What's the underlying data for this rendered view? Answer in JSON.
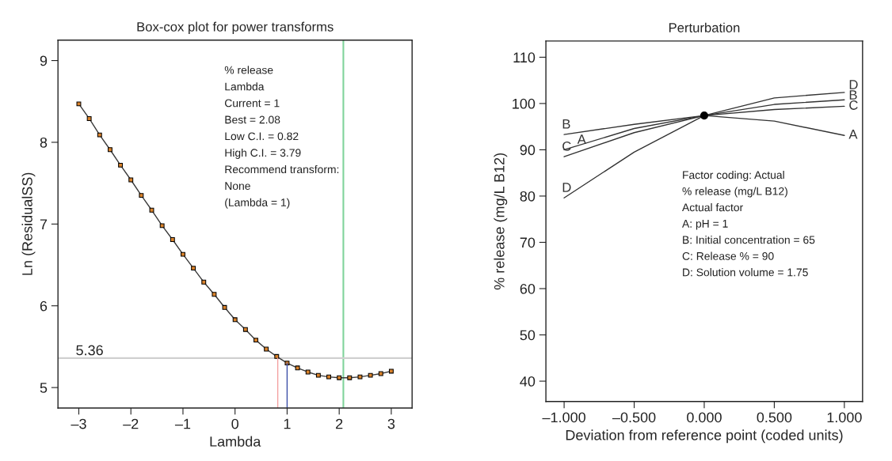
{
  "chart_data": [
    {
      "type": "line",
      "title": "Box-cox plot for power transforms",
      "xlabel": "Lambda",
      "ylabel": "Ln (ResidualSS)",
      "xlim": [
        -3.4,
        3.4
      ],
      "ylim": [
        4.75,
        9.25
      ],
      "xticks": [
        {
          "value": -3,
          "label": "–3"
        },
        {
          "value": -2,
          "label": "–2"
        },
        {
          "value": -1,
          "label": "–1"
        },
        0,
        1,
        2,
        3
      ],
      "yticks": [
        5,
        6,
        7,
        8,
        9
      ],
      "grid": false,
      "legend": false,
      "series": [
        {
          "color": "#3a3a3a",
          "marker": "square",
          "x": [
            -3,
            -2.8,
            -2.6,
            -2.4,
            -2.2,
            -2.0,
            -1.8,
            -1.6,
            -1.4,
            -1.2,
            -1.0,
            -0.8,
            -0.6,
            -0.4,
            -0.2,
            0,
            0.2,
            0.4,
            0.6,
            0.8,
            1.0,
            1.2,
            1.4,
            1.6,
            1.8,
            2.0,
            2.2,
            2.4,
            2.6,
            2.8,
            3.0
          ],
          "values": [
            8.47,
            8.29,
            8.09,
            7.91,
            7.72,
            7.54,
            7.35,
            7.17,
            6.98,
            6.81,
            6.63,
            6.46,
            6.29,
            6.14,
            5.98,
            5.83,
            5.71,
            5.58,
            5.47,
            5.38,
            5.3,
            5.24,
            5.19,
            5.15,
            5.13,
            5.12,
            5.12,
            5.13,
            5.15,
            5.17,
            5.2
          ]
        },
        {
          "color": "#f4a0a0",
          "x": [
            0.82,
            0.82
          ],
          "values": [
            4.75,
            5.36
          ]
        },
        {
          "color": "#3b4fa8",
          "x": [
            1,
            1
          ],
          "values": [
            4.75,
            5.3
          ]
        }
      ],
      "ref_lines": [
        {
          "axis": "x",
          "value": 2.08,
          "color": "#7fd39a"
        },
        {
          "axis": "y",
          "value": 5.36,
          "label": "5.36",
          "color": "#d0d0d0"
        }
      ],
      "annotations": [
        "% release",
        "Lambda",
        "Current = 1",
        "Best = 2.08",
        "Low C.I. = 0.82",
        "High C.I. = 3.79",
        "Recommend transform:",
        "None",
        "(Lambda = 1)"
      ]
    },
    {
      "type": "line",
      "title": "Perturbation",
      "xlabel": "Deviation from reference point (coded units)",
      "ylabel": "% release (mg/L B12)",
      "xlim": [
        -1.13,
        1.13
      ],
      "ylim": [
        35.6,
        113.5
      ],
      "xticks": [
        {
          "value": -1,
          "label": "–1.000"
        },
        {
          "value": -0.5,
          "label": "–0.500"
        },
        {
          "value": 0,
          "label": "0.000"
        },
        {
          "value": 0.5,
          "label": "0.500"
        },
        {
          "value": 1,
          "label": "1.000"
        }
      ],
      "yticks": [
        40,
        50,
        60,
        70,
        80,
        90,
        100,
        110
      ],
      "grid": false,
      "legend": false,
      "x": [
        -1,
        -0.5,
        0,
        0.5,
        1
      ],
      "series": [
        {
          "name": "A",
          "color": "#333333",
          "values": [
            90.0,
            94.6,
            97.4,
            96.2,
            93.1
          ]
        },
        {
          "name": "B",
          "color": "#333333",
          "values": [
            93.3,
            95.5,
            97.4,
            99.8,
            100.8
          ]
        },
        {
          "name": "C",
          "color": "#333333",
          "values": [
            88.5,
            93.7,
            97.4,
            98.7,
            99.4
          ]
        },
        {
          "name": "D",
          "color": "#333333",
          "values": [
            79.6,
            89.5,
            97.4,
            101.2,
            102.4
          ]
        },
        {
          "type": "scatter",
          "color": "#000000",
          "marker": "circle",
          "x": [
            0
          ],
          "values": [
            97.4
          ]
        }
      ],
      "annotations": [
        "Factor coding: Actual",
        "% release (mg/L B12)",
        "Actual factor",
        "A: pH = 1",
        "B: Initial concentration = 65",
        "C: Release % = 90",
        "D: Solution volume = 1.75"
      ]
    }
  ]
}
